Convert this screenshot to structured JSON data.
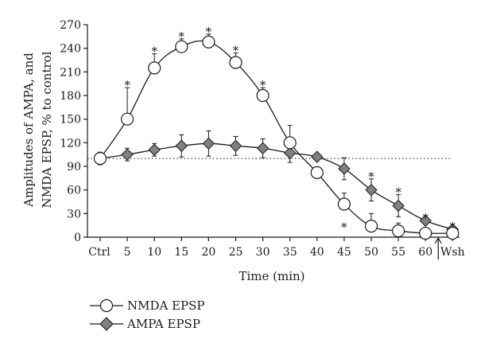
{
  "chart_data": {
    "type": "line",
    "x_categories": [
      "Ctrl",
      "5",
      "10",
      "15",
      "20",
      "25",
      "30",
      "35",
      "40",
      "45",
      "50",
      "55",
      "60",
      "Wsh"
    ],
    "xlabel": "Time (min)",
    "ylabel_line1": "Amplitudes of AMPA, and",
    "ylabel_line2": "NMDA EPSP, % to control",
    "ylim": [
      0,
      270
    ],
    "yticks": [
      "0",
      "30",
      "60",
      "90",
      "120",
      "150",
      "180",
      "210",
      "240",
      "270"
    ],
    "reference_line": 100,
    "arrow_between": [
      "60",
      "Wsh"
    ],
    "series": [
      {
        "name": "NMDA EPSP",
        "marker": "circle",
        "marker_fill": "#ffffff",
        "values": [
          100,
          150,
          215,
          242,
          248,
          222,
          180,
          120,
          82,
          42,
          14,
          8,
          5,
          5
        ],
        "err": [
          0,
          40,
          18,
          10,
          10,
          12,
          10,
          22,
          0,
          14,
          16,
          10,
          0,
          0
        ],
        "significant": [
          false,
          true,
          true,
          true,
          true,
          true,
          true,
          false,
          false,
          true,
          false,
          false,
          false,
          false
        ],
        "star_below": [
          false,
          false,
          false,
          false,
          false,
          false,
          false,
          false,
          false,
          true,
          false,
          false,
          false,
          false
        ]
      },
      {
        "name": "AMPA EPSP",
        "marker": "diamond",
        "marker_fill": "#808080",
        "values": [
          100,
          105,
          111,
          116,
          119,
          116,
          113,
          107,
          102,
          87,
          60,
          40,
          21,
          10
        ],
        "err": [
          8,
          8,
          8,
          14,
          16,
          12,
          12,
          12,
          0,
          14,
          14,
          14,
          0,
          0
        ],
        "significant": [
          false,
          false,
          false,
          false,
          false,
          false,
          false,
          false,
          false,
          false,
          true,
          true,
          true,
          true
        ],
        "star_below": [
          false,
          false,
          false,
          false,
          false,
          false,
          false,
          false,
          false,
          false,
          false,
          false,
          false,
          false
        ]
      }
    ],
    "legend": [
      "NMDA EPSP",
      "AMPA EPSP"
    ]
  }
}
